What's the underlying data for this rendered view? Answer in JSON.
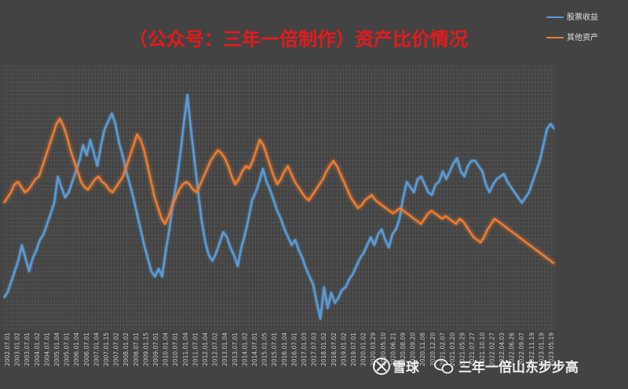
{
  "chart_data": {
    "type": "line",
    "title": "（公众号：三年一倍制作）资产比价情况",
    "xlabel": "",
    "ylabel": "",
    "grid": true,
    "legend_position": "top-right",
    "colors": {
      "background": "#434343",
      "grid": "#5a5a5a",
      "title": "#e41a1c"
    },
    "x_ticks": [
      "2002.07.01",
      "2003.01.02",
      "2003.07.01",
      "2004.01.02",
      "2004.07.01",
      "2005.01.04",
      "2005.07.01",
      "2006.01.04",
      "2006.07.01",
      "2007.01.04",
      "2007.01.15",
      "2007.07.02",
      "2008.01.02",
      "2008.07.01",
      "2009.01.15",
      "2009.07.01",
      "2010.01.04",
      "2010.07.01",
      "2011.01.04",
      "2011.07.01",
      "2012.01.04",
      "2012.07.02",
      "2013.01.04",
      "2013.07.01",
      "2014.01.02",
      "2014.07.01",
      "2015.01.05",
      "2015.07.01",
      "2016.01.04",
      "2016.07.01",
      "2017.01.03",
      "2017.07.03",
      "2018.01.02",
      "2018.07.02",
      "2019.01.02",
      "2019.07.01",
      "2020.01.02",
      "2020.03.29",
      "2020.05.10",
      "2020.06.21",
      "2020.08.09",
      "2020.09.20",
      "2020.11.08",
      "2020.12.20",
      "2021.02.07",
      "2021.03.20",
      "2021.05.29",
      "2021.07.27",
      "2021.10.10",
      "2022.02.27",
      "2022.04.03",
      "2022.06.26",
      "2022.09.07",
      "2022.11.19",
      "2023.01.19",
      "2023.05.19"
    ],
    "series": [
      {
        "name": "股票收益",
        "color": "#5b9bd5",
        "values": [
          0.12,
          0.14,
          0.18,
          0.22,
          0.26,
          0.32,
          0.27,
          0.22,
          0.27,
          0.3,
          0.34,
          0.36,
          0.4,
          0.44,
          0.48,
          0.58,
          0.54,
          0.5,
          0.52,
          0.56,
          0.6,
          0.64,
          0.7,
          0.66,
          0.72,
          0.67,
          0.62,
          0.7,
          0.76,
          0.79,
          0.82,
          0.78,
          0.71,
          0.66,
          0.6,
          0.55,
          0.5,
          0.44,
          0.38,
          0.32,
          0.27,
          0.22,
          0.2,
          0.23,
          0.2,
          0.3,
          0.38,
          0.48,
          0.56,
          0.66,
          0.78,
          0.89,
          0.76,
          0.64,
          0.52,
          0.41,
          0.33,
          0.28,
          0.26,
          0.29,
          0.33,
          0.37,
          0.35,
          0.31,
          0.28,
          0.24,
          0.31,
          0.36,
          0.42,
          0.49,
          0.52,
          0.56,
          0.61,
          0.56,
          0.53,
          0.49,
          0.45,
          0.42,
          0.38,
          0.35,
          0.32,
          0.34,
          0.3,
          0.27,
          0.23,
          0.2,
          0.17,
          0.1,
          0.04,
          0.16,
          0.08,
          0.14,
          0.1,
          0.12,
          0.15,
          0.16,
          0.19,
          0.21,
          0.24,
          0.27,
          0.29,
          0.32,
          0.35,
          0.32,
          0.36,
          0.38,
          0.34,
          0.31,
          0.36,
          0.38,
          0.42,
          0.5,
          0.56,
          0.54,
          0.52,
          0.57,
          0.58,
          0.55,
          0.52,
          0.51,
          0.55,
          0.56,
          0.6,
          0.57,
          0.6,
          0.63,
          0.65,
          0.6,
          0.58,
          0.62,
          0.64,
          0.64,
          0.62,
          0.6,
          0.55,
          0.52,
          0.55,
          0.57,
          0.58,
          0.59,
          0.56,
          0.54,
          0.52,
          0.5,
          0.48,
          0.5,
          0.52,
          0.56,
          0.6,
          0.64,
          0.7,
          0.76,
          0.78,
          0.76
        ]
      },
      {
        "name": "其他资产",
        "color": "#ed7d31",
        "values": [
          0.48,
          0.5,
          0.52,
          0.55,
          0.56,
          0.54,
          0.52,
          0.53,
          0.55,
          0.57,
          0.58,
          0.62,
          0.66,
          0.7,
          0.74,
          0.78,
          0.8,
          0.77,
          0.73,
          0.68,
          0.64,
          0.6,
          0.56,
          0.54,
          0.53,
          0.55,
          0.57,
          0.58,
          0.56,
          0.55,
          0.53,
          0.52,
          0.54,
          0.56,
          0.58,
          0.62,
          0.66,
          0.7,
          0.74,
          0.72,
          0.68,
          0.62,
          0.56,
          0.5,
          0.46,
          0.42,
          0.4,
          0.43,
          0.47,
          0.5,
          0.53,
          0.55,
          0.56,
          0.55,
          0.53,
          0.52,
          0.55,
          0.58,
          0.61,
          0.64,
          0.66,
          0.68,
          0.67,
          0.65,
          0.62,
          0.58,
          0.55,
          0.57,
          0.6,
          0.62,
          0.61,
          0.64,
          0.68,
          0.72,
          0.7,
          0.66,
          0.62,
          0.58,
          0.55,
          0.57,
          0.6,
          0.62,
          0.59,
          0.56,
          0.54,
          0.52,
          0.5,
          0.49,
          0.51,
          0.53,
          0.55,
          0.57,
          0.6,
          0.62,
          0.64,
          0.62,
          0.59,
          0.56,
          0.53,
          0.5,
          0.48,
          0.46,
          0.47,
          0.49,
          0.5,
          0.51,
          0.49,
          0.48,
          0.47,
          0.46,
          0.45,
          0.44,
          0.45,
          0.46,
          0.45,
          0.44,
          0.43,
          0.42,
          0.41,
          0.4,
          0.42,
          0.44,
          0.45,
          0.44,
          0.43,
          0.42,
          0.43,
          0.42,
          0.41,
          0.4,
          0.42,
          0.41,
          0.39,
          0.37,
          0.35,
          0.34,
          0.33,
          0.35,
          0.38,
          0.4,
          0.42,
          0.41,
          0.4,
          0.39,
          0.38,
          0.37,
          0.36,
          0.35,
          0.34,
          0.33,
          0.32,
          0.31,
          0.3,
          0.29,
          0.28,
          0.27,
          0.26,
          0.25
        ]
      }
    ],
    "ylim": [
      0,
      1
    ]
  },
  "watermark": {
    "platform": "雪球",
    "author": "三年一倍山东步步高"
  }
}
